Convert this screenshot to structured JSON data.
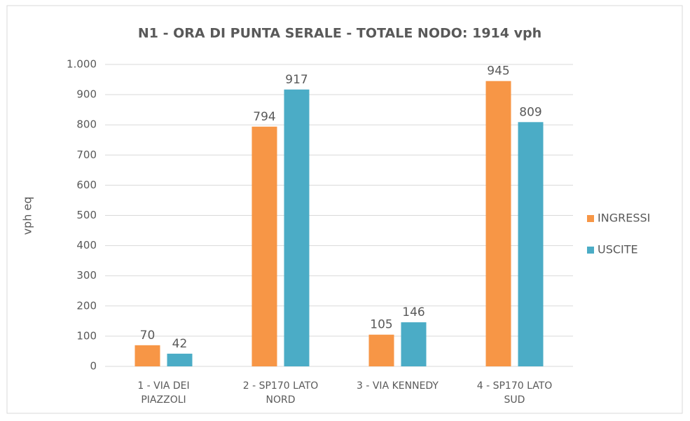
{
  "chart_data": {
    "type": "bar",
    "title": "N1 - ORA DI PUNTA SERALE - TOTALE NODO: 1914 vph",
    "y_label": "vph eq",
    "categories": [
      "1 - VIA DEI PIAZZOLI",
      "2 - SP170 LATO NORD",
      "3 - VIA KENNEDY",
      "4 - SP170 LATO SUD"
    ],
    "series": [
      {
        "name": "INGRESSI",
        "color": "#f79646",
        "values": [
          70,
          794,
          105,
          945
        ]
      },
      {
        "name": "USCITE",
        "color": "#4bacc6",
        "values": [
          42,
          917,
          146,
          809
        ]
      }
    ],
    "ylim": [
      0,
      1000
    ],
    "yticks": [
      0,
      100,
      200,
      300,
      400,
      500,
      600,
      700,
      800,
      900,
      {
        "value": 1000,
        "label": "1.000"
      }
    ],
    "grid": true,
    "legend": "right"
  }
}
